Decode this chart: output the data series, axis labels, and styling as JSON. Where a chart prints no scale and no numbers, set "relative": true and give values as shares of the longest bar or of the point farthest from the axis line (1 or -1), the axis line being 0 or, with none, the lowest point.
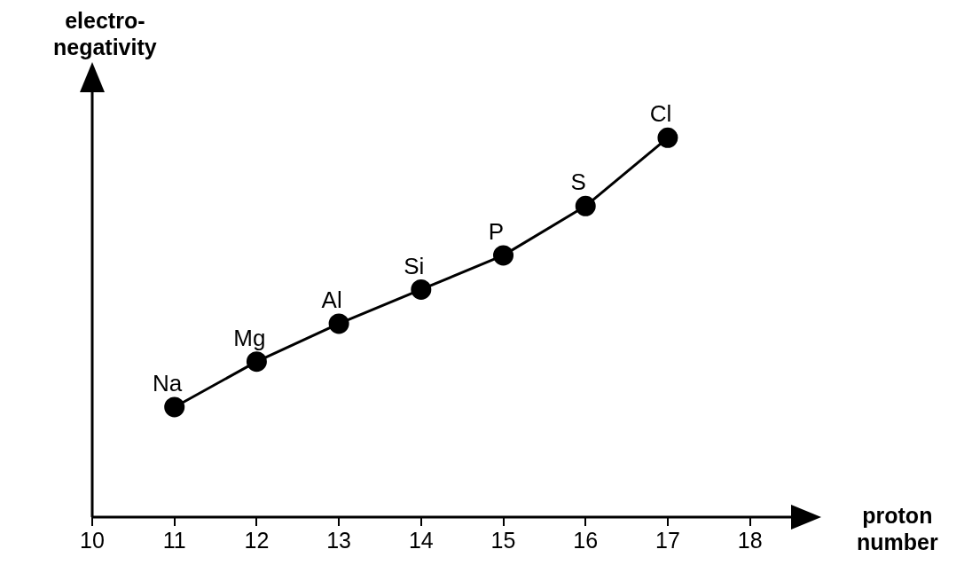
{
  "chart_data": {
    "type": "line",
    "relative": true,
    "xlabel": "proton\nnumber",
    "ylabel": "electro-\nnegativity",
    "x": [
      11,
      12,
      13,
      14,
      15,
      16,
      17
    ],
    "series": [
      {
        "color": "#000000",
        "values": [
          0.29,
          0.41,
          0.51,
          0.6,
          0.69,
          0.82,
          1
        ]
      }
    ],
    "xlim": [
      10,
      18.5
    ],
    "xticks": [
      10,
      11,
      12,
      13,
      14,
      15,
      16,
      17,
      18
    ],
    "marker": "circle",
    "line_style": "solid",
    "grid": false,
    "legend": false,
    "annotations": [
      {
        "text": "Na",
        "x": 11,
        "y": 0.29
      },
      {
        "text": "Mg",
        "x": 12,
        "y": 0.41
      },
      {
        "text": "Al",
        "x": 13,
        "y": 0.51
      },
      {
        "text": "Si",
        "x": 14,
        "y": 0.6
      },
      {
        "text": "P",
        "x": 15,
        "y": 0.69
      },
      {
        "text": "S",
        "x": 16,
        "y": 0.82
      },
      {
        "text": "Cl",
        "x": 17,
        "y": 1
      }
    ]
  }
}
